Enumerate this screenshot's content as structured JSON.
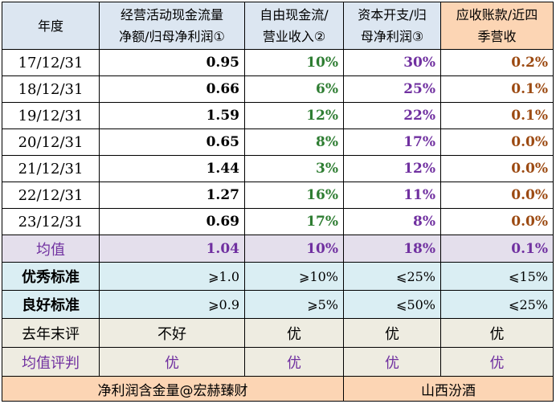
{
  "header": {
    "col0": "年度",
    "col1_line1": "经营活动现金流量",
    "col1_line2": "净额/归母净利润①",
    "col2_line1": "自由现金流/",
    "col2_line2": "营业收入②",
    "col3_line1": "资本开支/归",
    "col3_line2": "母净利润③",
    "col4_line1": "应收账款/近四",
    "col4_line2": "季营收"
  },
  "rows": [
    {
      "year": "17/12/31",
      "v1": "0.95",
      "v2": "10%",
      "v3": "30%",
      "v4": "0.2%"
    },
    {
      "year": "18/12/31",
      "v1": "0.66",
      "v2": "6%",
      "v3": "25%",
      "v4": "0.1%"
    },
    {
      "year": "19/12/31",
      "v1": "1.59",
      "v2": "12%",
      "v3": "22%",
      "v4": "0.1%"
    },
    {
      "year": "20/12/31",
      "v1": "0.65",
      "v2": "8%",
      "v3": "17%",
      "v4": "0.0%"
    },
    {
      "year": "21/12/31",
      "v1": "1.44",
      "v2": "3%",
      "v3": "12%",
      "v4": "0.0%"
    },
    {
      "year": "22/12/31",
      "v1": "1.27",
      "v2": "16%",
      "v3": "11%",
      "v4": "0.0%"
    },
    {
      "year": "23/12/31",
      "v1": "0.69",
      "v2": "17%",
      "v3": "8%",
      "v4": "0.0%"
    }
  ],
  "average": {
    "label": "均值",
    "v1": "1.04",
    "v2": "10%",
    "v3": "18%",
    "v4": "0.1%"
  },
  "excellent": {
    "label": "优秀标准",
    "v1": "⩾1.0",
    "v2": "⩾10%",
    "v3": "⩽25%",
    "v4": "⩽15%"
  },
  "good": {
    "label": "良好标准",
    "v1": "⩾0.9",
    "v2": "⩾5%",
    "v3": "⩽50%",
    "v4": "⩽25%"
  },
  "last_year_eval": {
    "label": "去年末评",
    "v1": "不好",
    "v2": "优",
    "v3": "优",
    "v4": "优"
  },
  "avg_eval": {
    "label": "均值评判",
    "v1": "优",
    "v2": "优",
    "v3": "优",
    "v4": "优"
  },
  "footer": {
    "left": "净利润含金量@宏赫臻财",
    "right": "山西汾酒"
  },
  "colors": {
    "header_blue": "#dce6f1",
    "header_orange": "#fcd5b4",
    "avg_row": "#e4dfec",
    "standard_rows": "#daeef3",
    "eval_rows": "#eeece1",
    "green_text": "#2e7d32",
    "purple_text": "#7030a0",
    "brown_text": "#9c4a12"
  }
}
